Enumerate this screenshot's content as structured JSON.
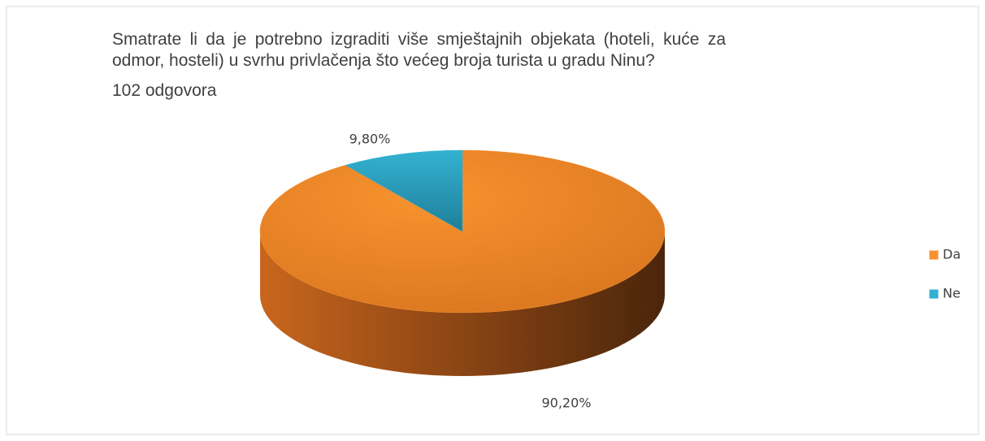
{
  "chart_data": {
    "type": "pie3d",
    "title": "Smatrate li da je potrebno izgraditi više smještajnih objekata (hoteli, kuće za odmor, hosteli) u svrhu privlačenja što  većeg broja turista u gradu Ninu?",
    "subtitle": "102 odgovora",
    "categories": [
      "Da",
      "Ne"
    ],
    "values": [
      90.2,
      9.8
    ],
    "value_labels": [
      "90,20%",
      "9,80%"
    ],
    "colors": [
      "#f7912f",
      "#31b0d0"
    ],
    "legend": "right"
  }
}
